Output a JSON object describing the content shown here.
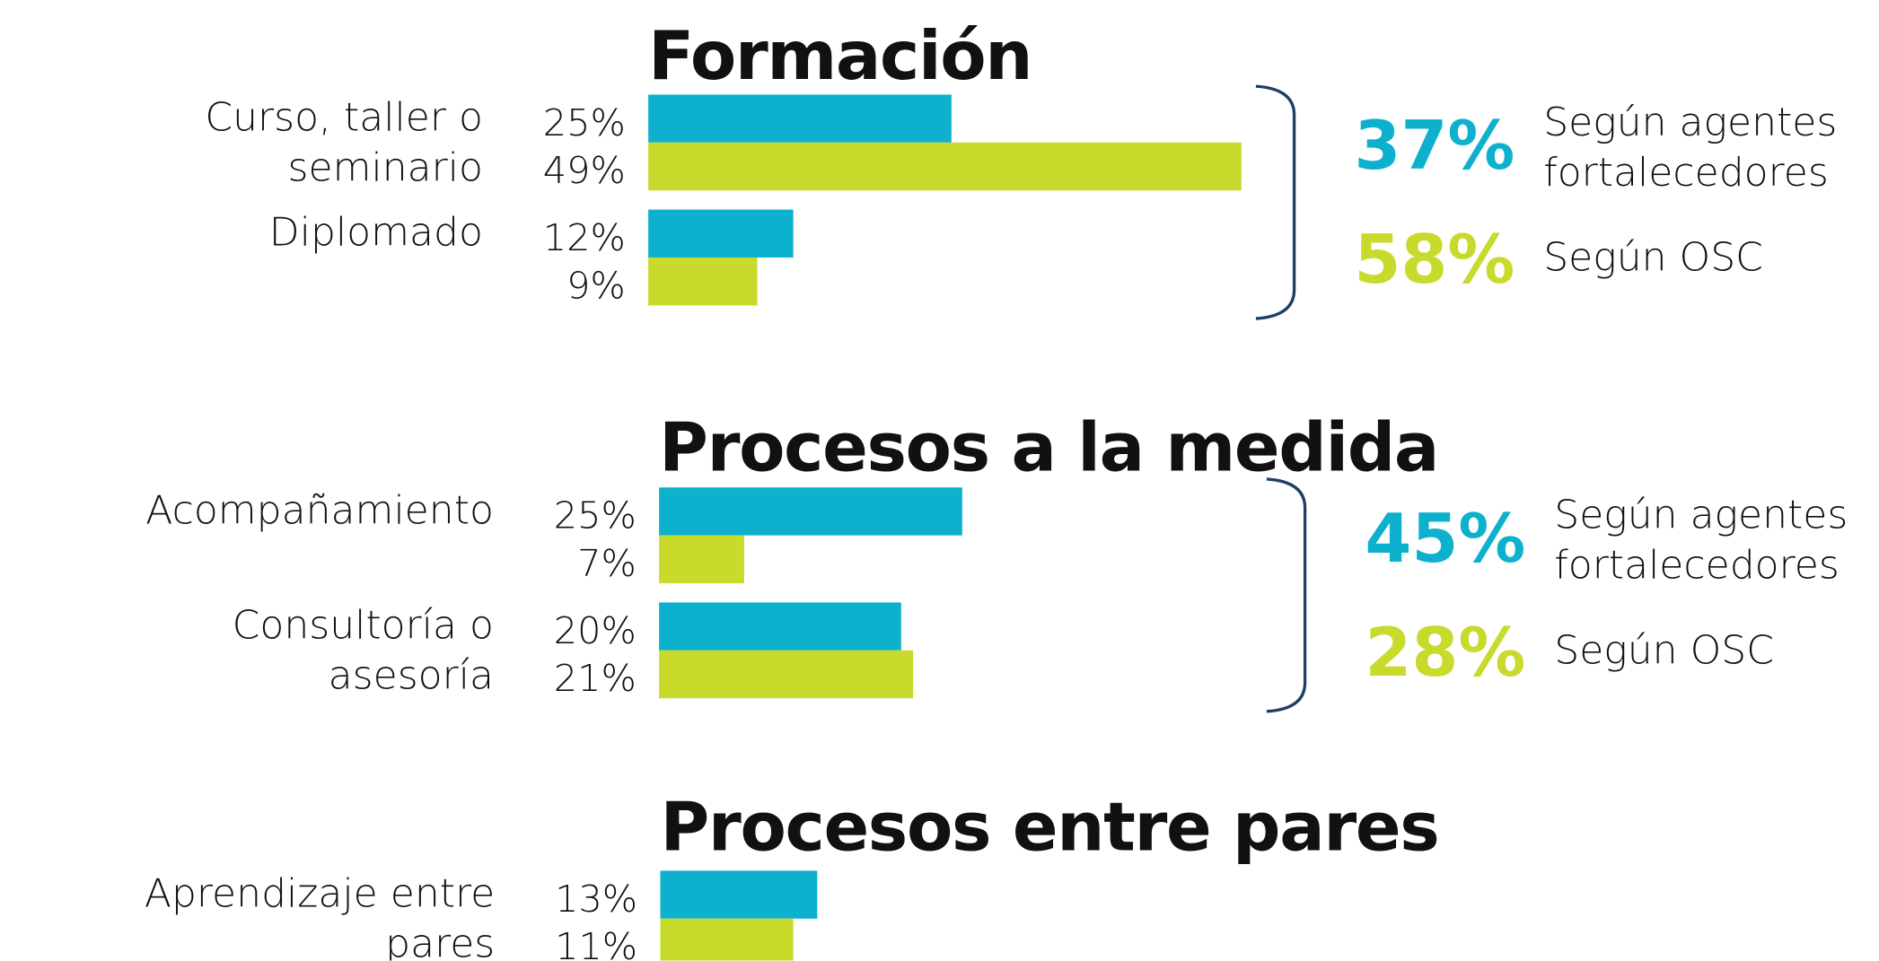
{
  "chart_data": [
    {
      "type": "bar",
      "title": "Formación",
      "categories": [
        "Curso, taller o seminario",
        "Diplomado"
      ],
      "series": [
        {
          "color": "#0db1cd",
          "values": [
            25,
            12
          ],
          "value_labels": [
            "25%",
            "12%"
          ]
        },
        {
          "color": "#c8da2c",
          "values": [
            49,
            9
          ],
          "value_labels": [
            "49%",
            "9%"
          ]
        }
      ],
      "summary": [
        {
          "value": 37,
          "label": "37%",
          "text": "Según agentes fortalecedores"
        },
        {
          "value": 58,
          "label": "58%",
          "text": "Según OSC"
        }
      ]
    },
    {
      "type": "bar",
      "title": "Procesos a la medida",
      "categories": [
        "Acompañamiento",
        "Consultoría o asesoría"
      ],
      "series": [
        {
          "color": "#0db1cd",
          "values": [
            25,
            20
          ],
          "value_labels": [
            "25%",
            "20%"
          ]
        },
        {
          "color": "#c8da2c",
          "values": [
            7,
            21
          ],
          "value_labels": [
            "7%",
            "21%"
          ]
        }
      ],
      "summary": [
        {
          "value": 45,
          "label": "45%",
          "text": "Según agentes fortalecedores"
        },
        {
          "value": 28,
          "label": "28%",
          "text": "Según OSC"
        }
      ]
    },
    {
      "type": "bar",
      "title": "Procesos entre pares",
      "categories": [
        "Aprendizaje entre pares"
      ],
      "series": [
        {
          "color": "#0db1cd",
          "values": [
            13
          ],
          "value_labels": [
            "13%"
          ]
        },
        {
          "color": "#c8da2c",
          "values": [
            11
          ],
          "value_labels": [
            "11%"
          ]
        }
      ]
    }
  ]
}
